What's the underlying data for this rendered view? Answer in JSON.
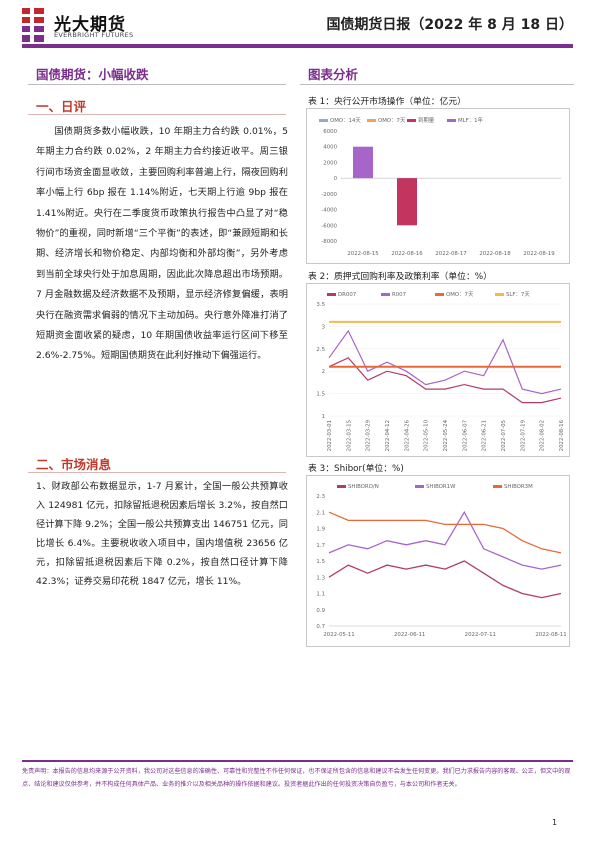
{
  "header": {
    "brand_cn": "光大期货",
    "brand_en": "EVERBRIGHT FUTURES",
    "report_title": "国债期货日报（2022 年 8 月 18 日）"
  },
  "main_heading": "国债期货：小幅收跌",
  "review": {
    "title": "一、日评",
    "text": "国债期货多数小幅收跌，10 年期主力合约跌 0.01%，5 年期主力合约跌 0.02%，2 年期主力合约接近收平。周三银行间市场资金面显收敛，主要回购利率普遍上行，隔夜回购利率小幅上行 6bp 报在 1.14%附近，七天期上行逾 9bp 报在 1.41%附近。央行在二季度货币政策执行报告中凸显了对“稳物价”的重视，同时新增“三个平衡”的表述，即“兼顾短期和长期、经济增长和物价稳定、内部均衡和外部均衡”，另外考虑到当前全球央行处于加息周期，因此此次降息超出市场预期。7 月金融数据及经济数据不及预期，显示经济修复偏缓，表明央行在融资需求偏弱的情况下主动加码。央行意外降准打消了短期资金面收紧的疑虑，10 年期国债收益率运行区间下移至 2.6%-2.75%。短期国债期货在此利好推动下偏强运行。"
  },
  "news": {
    "title": "二、市场消息",
    "text": "1、财政部公布数据显示，1-7 月累计，全国一般公共预算收入 124981 亿元，扣除留抵退税因素后增长 3.2%，按自然口径计算下降 9.2%；全国一般公共预算支出 146751 亿元，同比增长 6.4%。主要税收收入项目中，国内增值税 23656 亿元，扣除留抵退税因素后下降 0.2%，按自然口径计算下降 42.3%；证券交易印花税 1847 亿元，增长 11%。"
  },
  "charts_section": {
    "heading": "图表分析",
    "chart1_title": "表 1：央行公开市场操作（单位：亿元）",
    "chart2_title": "表 2：质押式回购利率及政策利率（单位：%）",
    "chart3_title": "表 3：Shibor(单位：%)"
  },
  "chart_data": [
    {
      "type": "bar",
      "title": "表 1：央行公开市场操作（单位：亿元）",
      "categories": [
        "2022-08-15",
        "2022-08-16",
        "2022-08-17",
        "2022-08-18",
        "2022-08-19"
      ],
      "series": [
        {
          "name": "OMO：14天",
          "values": [
            0,
            0,
            0,
            0,
            0
          ]
        },
        {
          "name": "OMO：7天",
          "values": [
            0,
            0,
            0,
            0,
            0
          ]
        },
        {
          "name": "到期量",
          "values": [
            0,
            -6000,
            0,
            0,
            0
          ]
        },
        {
          "name": "MLF：1年",
          "values": [
            4000,
            0,
            0,
            0,
            0
          ]
        }
      ],
      "colors": [
        "#9aa6c9",
        "#f2a25c",
        "#c1355e",
        "#a865c9"
      ],
      "yticks": [
        6000,
        4000,
        2000,
        0,
        -2000,
        -4000,
        -6000,
        -8000
      ],
      "ylim": [
        -8000,
        6000
      ]
    },
    {
      "type": "line",
      "title": "表 2：质押式回购利率及政策利率（单位：%）",
      "xticks": [
        "2022-03-01",
        "2022-03-15",
        "2022-03-29",
        "2022-04-12",
        "2022-04-26",
        "2022-05-10",
        "2022-05-24",
        "2022-06-07",
        "2022-06-21",
        "2022-07-05",
        "2022-07-19",
        "2022-08-02",
        "2022-08-16"
      ],
      "series": [
        {
          "name": "DR007",
          "values": [
            2.1,
            2.3,
            1.8,
            2.0,
            1.9,
            1.6,
            1.6,
            1.7,
            1.6,
            1.6,
            1.3,
            1.3,
            1.4
          ]
        },
        {
          "name": "R007",
          "values": [
            2.3,
            2.9,
            2.0,
            2.2,
            2.0,
            1.7,
            1.8,
            2.0,
            1.9,
            2.7,
            1.6,
            1.5,
            1.6
          ]
        },
        {
          "name": "OMO：7天",
          "values": [
            2.1,
            2.1,
            2.1,
            2.1,
            2.1,
            2.1,
            2.1,
            2.1,
            2.1,
            2.1,
            2.1,
            2.1,
            2.1
          ]
        },
        {
          "name": "SLF：7天",
          "values": [
            3.1,
            3.1,
            3.1,
            3.1,
            3.1,
            3.1,
            3.1,
            3.1,
            3.1,
            3.1,
            3.1,
            3.1,
            3.1
          ]
        }
      ],
      "colors": [
        "#b23b6c",
        "#a865c9",
        "#e8683a",
        "#f5b949"
      ],
      "yticks": [
        3.5,
        3,
        2.5,
        2,
        1.5,
        1
      ],
      "ylim": [
        1,
        3.5
      ]
    },
    {
      "type": "line",
      "title": "表 3：Shibor(单位：%)",
      "xticks": [
        "2022-05-11",
        "2022-06-11",
        "2022-07-11",
        "2022-08-11"
      ],
      "x": [
        0,
        1,
        2,
        3,
        4,
        5,
        6,
        7,
        8,
        9,
        10,
        11,
        12
      ],
      "series": [
        {
          "name": "SHIBORO/N",
          "values": [
            1.3,
            1.45,
            1.35,
            1.45,
            1.4,
            1.45,
            1.4,
            1.5,
            1.35,
            1.2,
            1.1,
            1.05,
            1.1
          ]
        },
        {
          "name": "SHIBOR1W",
          "values": [
            1.6,
            1.7,
            1.65,
            1.75,
            1.7,
            1.75,
            1.7,
            2.1,
            1.65,
            1.55,
            1.45,
            1.4,
            1.45
          ]
        },
        {
          "name": "SHIBOR3M",
          "values": [
            2.1,
            2.0,
            2.0,
            2.0,
            2.0,
            2.0,
            1.95,
            1.95,
            1.95,
            1.9,
            1.75,
            1.65,
            1.6
          ]
        }
      ],
      "colors": [
        "#b23b6c",
        "#a865c9",
        "#e8683a"
      ],
      "yticks": [
        2.3,
        2.1,
        1.9,
        1.7,
        1.5,
        1.3,
        1.1,
        0.9,
        0.7
      ],
      "ylim": [
        0.7,
        2.3
      ]
    }
  ],
  "footer": {
    "disclaimer": "免责声明：本报告的信息均来源于公开资料，我公司对这些信息的准确性、可靠性和完整性不作任何保证，也不保证所包含的信息和建议不会发生任何变更。我们已力求报告内容的客观、公正，但文中的观点、结论和建议仅供参考，并不构成任何具体产品、业务的推介以及相关品种的操作依据和建议。投资者据此作出的任何投资决策自负盈亏，与本公司和作者无关。",
    "page": "1"
  }
}
